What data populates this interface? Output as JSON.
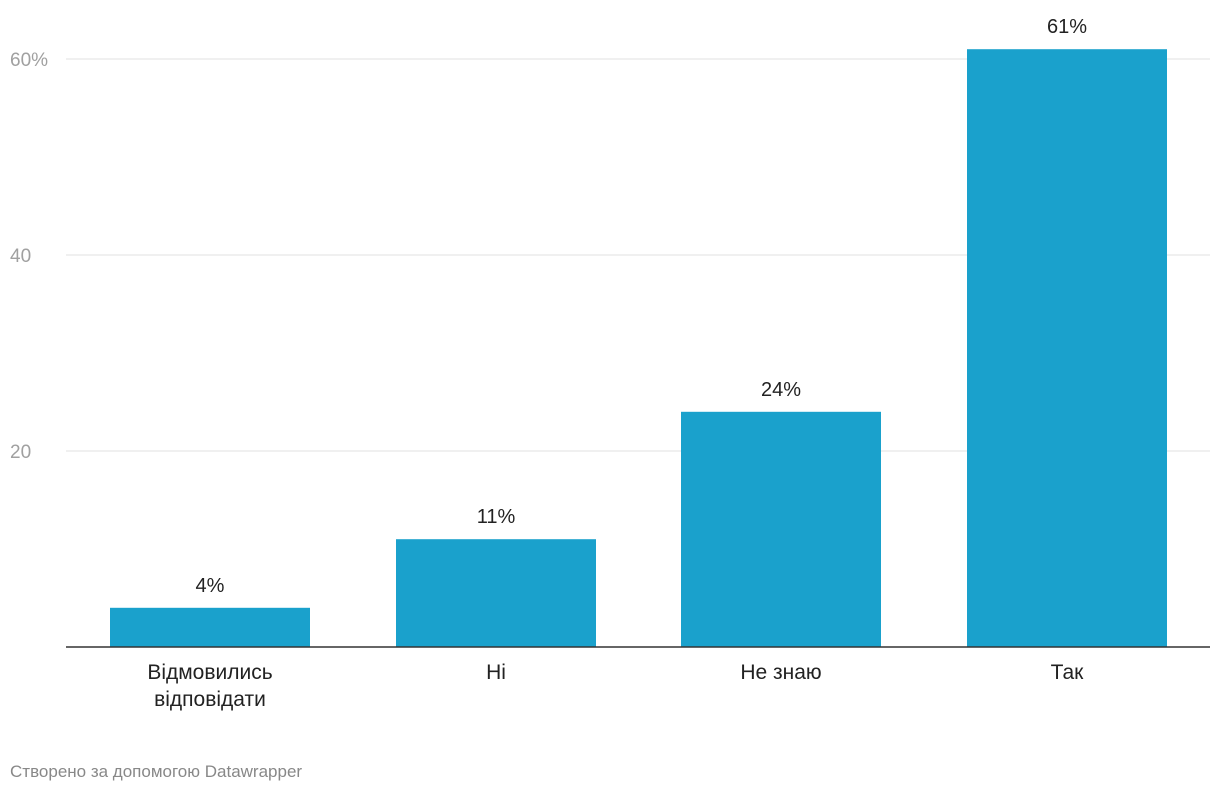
{
  "chart_data": {
    "type": "bar",
    "categories": [
      [
        "Відмовились",
        "відповідати"
      ],
      [
        "Ні"
      ],
      [
        "Не знаю"
      ],
      [
        "Так"
      ]
    ],
    "values": [
      4,
      11,
      24,
      61
    ],
    "data_labels": [
      "4%",
      "11%",
      "24%",
      "61%"
    ],
    "yticks": [
      {
        "value": 20,
        "label": "20"
      },
      {
        "value": 40,
        "label": "40"
      },
      {
        "value": 60,
        "label": "60%"
      }
    ],
    "ylim": [
      0,
      61
    ],
    "title": "",
    "xlabel": "",
    "ylabel": "",
    "grid": true,
    "colors": {
      "bar": "#1aa1cc",
      "grid": "#e0e0e0",
      "axis": "#333333",
      "tick_label": "#a0a0a0",
      "value_label": "#222222",
      "category_label": "#222222"
    }
  },
  "footer": {
    "credit": "Створено за допомогою Datawrapper"
  }
}
